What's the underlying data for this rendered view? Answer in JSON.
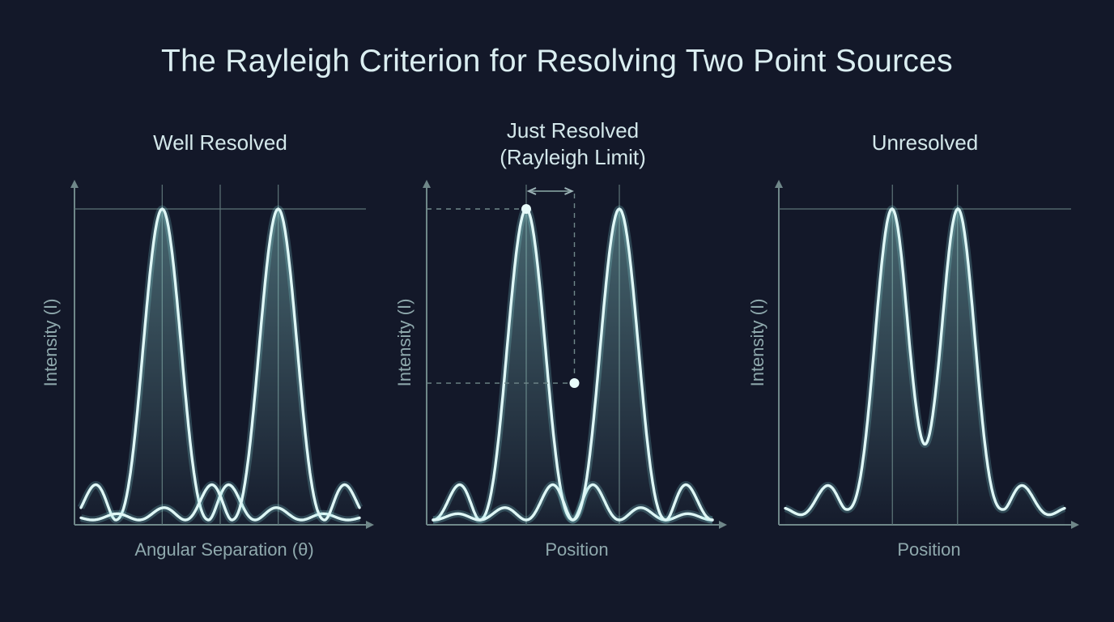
{
  "title": "The Rayleigh Criterion for Resolving Two Point Sources",
  "colors": {
    "background": "#131829",
    "curve": "#dff7f6",
    "fill": "#7fc9c8",
    "axis": "#6f8789"
  },
  "panels": [
    {
      "id": "well",
      "title_lines": [
        "Well Resolved"
      ],
      "ylabel": "Intensity (I)",
      "xlabel": "Angular Separation (θ)",
      "peaks": [
        -1.25,
        1.25
      ],
      "show_sum": false,
      "show_rayleigh_markers": false
    },
    {
      "id": "just",
      "title_lines": [
        "Just Resolved",
        "(Rayleigh Limit)"
      ],
      "ylabel": "Intensity (I)",
      "xlabel": "Position",
      "peaks": [
        -1.0,
        1.0
      ],
      "show_sum": false,
      "show_rayleigh_markers": true
    },
    {
      "id": "unresolved",
      "title_lines": [
        "Unresolved"
      ],
      "ylabel": "Intensity (I)",
      "xlabel": "Position",
      "peaks": [
        -0.7,
        0.7
      ],
      "show_sum": true,
      "show_rayleigh_markers": false
    }
  ]
}
